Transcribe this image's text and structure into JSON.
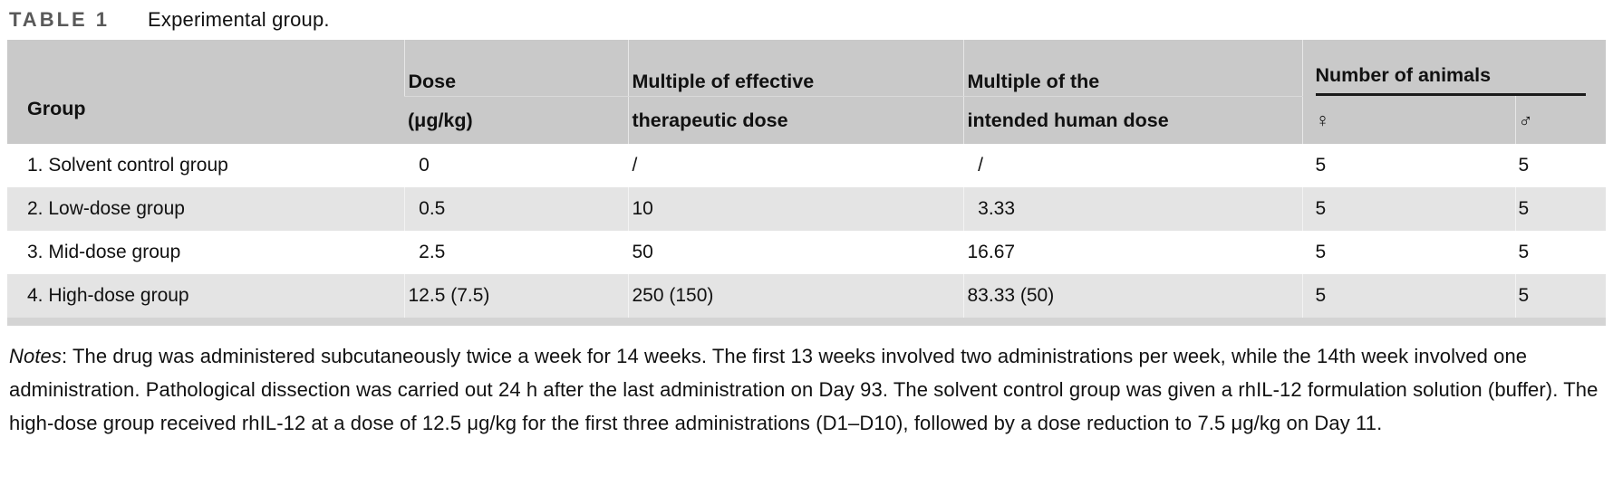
{
  "title": {
    "label": "TABLE 1",
    "caption": "Experimental group."
  },
  "table": {
    "headers": {
      "group": "Group",
      "dose_line1": "Dose",
      "dose_line2": "(μg/kg)",
      "effective_line1": "Multiple of effective",
      "effective_line2": "therapeutic dose",
      "human_line1": "Multiple of the",
      "human_line2": "intended human dose",
      "animals": "Number of animals",
      "female": "♀",
      "male": "♂"
    },
    "rows": [
      {
        "group": "1. Solvent control group",
        "dose": "  0",
        "effective": "/",
        "human": "  /",
        "female": "5",
        "male": "5"
      },
      {
        "group": "2. Low-dose group",
        "dose": "  0.5",
        "effective": "10",
        "human": "  3.33",
        "female": "5",
        "male": "5"
      },
      {
        "group": "3. Mid-dose group",
        "dose": "  2.5",
        "effective": "50",
        "human": "16.67",
        "female": "5",
        "male": "5"
      },
      {
        "group": "4. High-dose group",
        "dose": "12.5 (7.5)",
        "effective": "250 (150)",
        "human": "83.33 (50)",
        "female": "5",
        "male": "5"
      }
    ]
  },
  "notes": {
    "label": "Notes",
    "text": ": The drug was administered subcutaneously twice a week for 14 weeks. The first 13 weeks involved two administrations per week, while the 14th week involved one administration. Pathological dissection was carried out 24 h after the last administration on Day 93. The solvent control group was given a rhIL-12 formulation solution (buffer). The high-dose group received rhIL-12 at a dose of 12.5 μg/kg for the first three administrations (D1–D10), followed by a dose reduction to 7.5 μg/kg on Day 11."
  },
  "colors": {
    "header_bg": "#c9c9c9",
    "row_stripe": "#e4e4e4",
    "bottom_band": "#d4d4d4",
    "table_label_gray": "#595959",
    "spanner_rule": "#1a1a1a"
  }
}
